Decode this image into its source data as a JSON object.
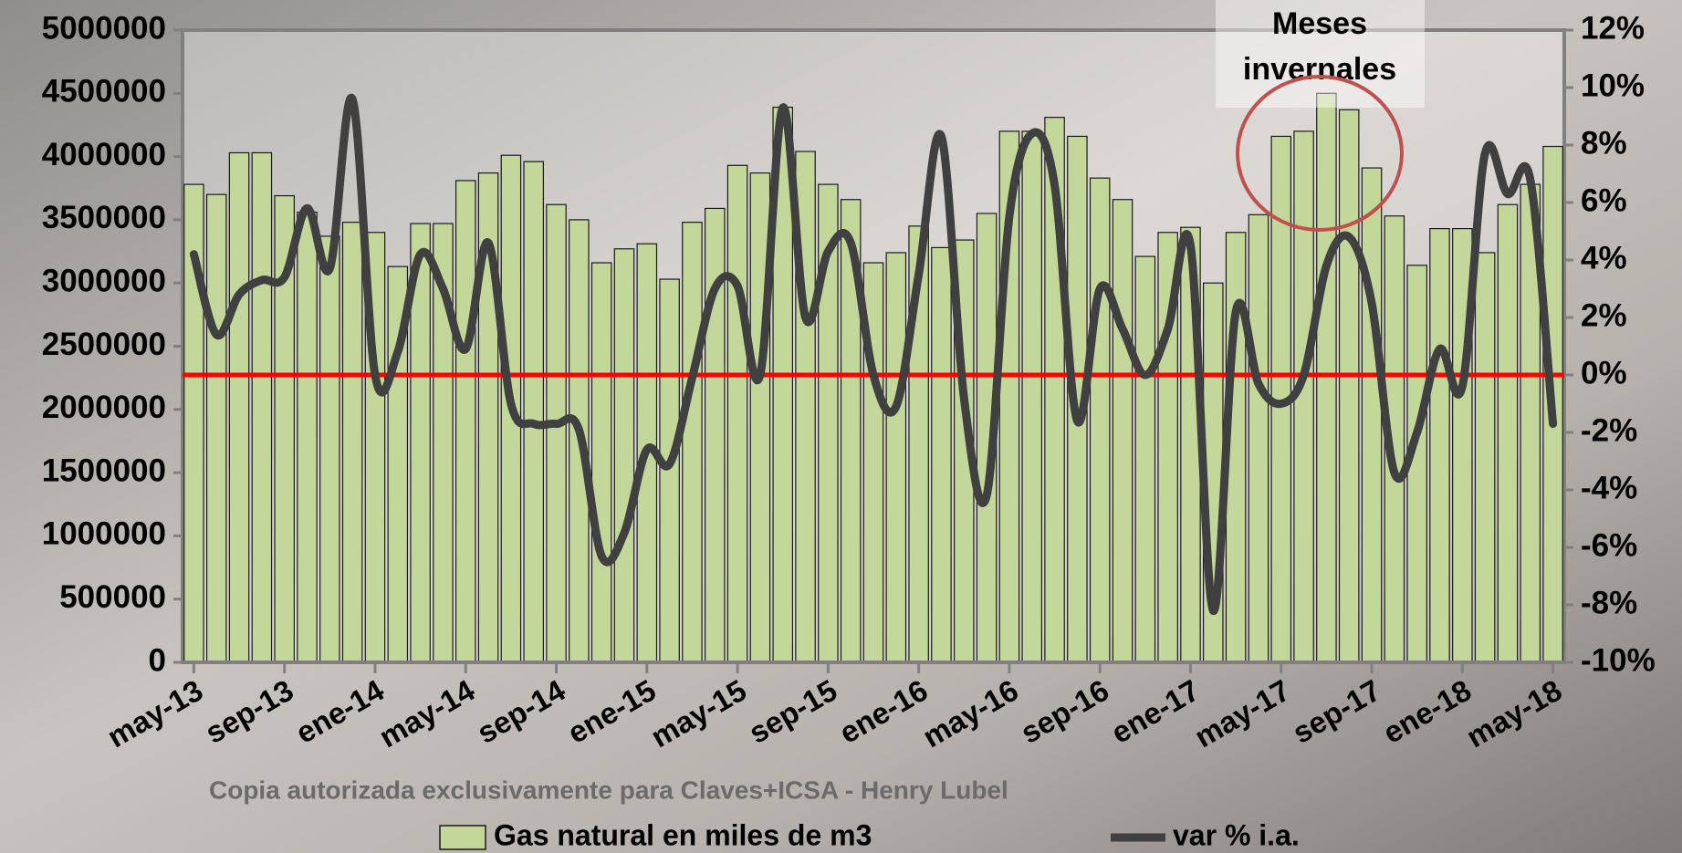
{
  "chart_data": {
    "type": "bar_line",
    "categories": [
      "may-13",
      null,
      null,
      null,
      "sep-13",
      null,
      null,
      null,
      "ene-14",
      null,
      null,
      null,
      "may-14",
      null,
      null,
      null,
      "sep-14",
      null,
      null,
      null,
      "ene-15",
      null,
      null,
      null,
      "may-15",
      null,
      null,
      null,
      "sep-15",
      null,
      null,
      null,
      "ene-16",
      null,
      null,
      null,
      "may-16",
      null,
      null,
      null,
      "sep-16",
      null,
      null,
      null,
      "ene-17",
      null,
      null,
      null,
      "may-17",
      null,
      null,
      null,
      "sep-17",
      null,
      null,
      null,
      "ene-18",
      null,
      null,
      null,
      "may-18"
    ],
    "series": [
      {
        "name": "Gas natural en miles de m3",
        "type": "bar",
        "color": "#c4d79b",
        "values": [
          3780000,
          3700000,
          4030000,
          4030000,
          3690000,
          3560000,
          3370000,
          3480000,
          3400000,
          3130000,
          3470000,
          3470000,
          3810000,
          3870000,
          4010000,
          3960000,
          3620000,
          3500000,
          3160000,
          3270000,
          3310000,
          3030000,
          3480000,
          3590000,
          3930000,
          3870000,
          4390000,
          4040000,
          3780000,
          3660000,
          3160000,
          3240000,
          3450000,
          3280000,
          3340000,
          3550000,
          4200000,
          4200000,
          4310000,
          4160000,
          3830000,
          3660000,
          3210000,
          3400000,
          3440000,
          3000000,
          3400000,
          3540000,
          4160000,
          4200000,
          4500000,
          4370000,
          3910000,
          3530000,
          3140000,
          3430000,
          3430000,
          3240000,
          3620000,
          3780000,
          4080000
        ]
      },
      {
        "name": "var % i.a.",
        "type": "line",
        "axis": "y2",
        "color": "#404040",
        "values": [
          4.2,
          1.4,
          2.8,
          3.3,
          3.4,
          5.8,
          3.7,
          9.6,
          0.0,
          0.8,
          4.2,
          3.0,
          0.9,
          4.6,
          -1.0,
          -1.7,
          -1.7,
          -1.9,
          -6.3,
          -5.5,
          -2.6,
          -3.1,
          -0.1,
          3.0,
          3.1,
          0.0,
          9.3,
          2.0,
          4.3,
          4.6,
          0.0,
          -1.1,
          3.5,
          8.3,
          -0.8,
          -4.2,
          5.5,
          8.4,
          6.6,
          -1.6,
          3.0,
          1.6,
          0.0,
          1.6,
          4.5,
          -8.2,
          2.2,
          -0.3,
          -1.0,
          0.0,
          3.8,
          4.8,
          2.5,
          -3.4,
          -2.0,
          0.9,
          -0.4,
          7.7,
          6.3,
          6.8,
          -1.7
        ]
      }
    ],
    "ylim": [
      0,
      5000000
    ],
    "yticks": [
      0,
      500000,
      1000000,
      1500000,
      2000000,
      2500000,
      3000000,
      3500000,
      4000000,
      4500000,
      5000000
    ],
    "y2lim": [
      -10,
      12
    ],
    "y2ticks": [
      {
        "value": -10,
        "label": "-10%"
      },
      {
        "value": -8,
        "label": "-8%"
      },
      {
        "value": -6,
        "label": "-6%"
      },
      {
        "value": -4,
        "label": "-4%"
      },
      {
        "value": -2,
        "label": "-2%"
      },
      {
        "value": 0,
        "label": "0%"
      },
      {
        "value": 2,
        "label": "2%"
      },
      {
        "value": 4,
        "label": "4%"
      },
      {
        "value": 6,
        "label": "6%"
      },
      {
        "value": 8,
        "label": "8%"
      },
      {
        "value": 10,
        "label": "10%"
      },
      {
        "value": 12,
        "label": "12%"
      }
    ],
    "reference_line": {
      "axis": "y2",
      "value": 0,
      "color": "#ff0000"
    },
    "annotation": {
      "lines": [
        "Meses",
        "invernales"
      ]
    },
    "watermark": "Copia autorizada exclusivamente para Claves+ICSA - Henry Lubel",
    "legend": "bottom"
  }
}
